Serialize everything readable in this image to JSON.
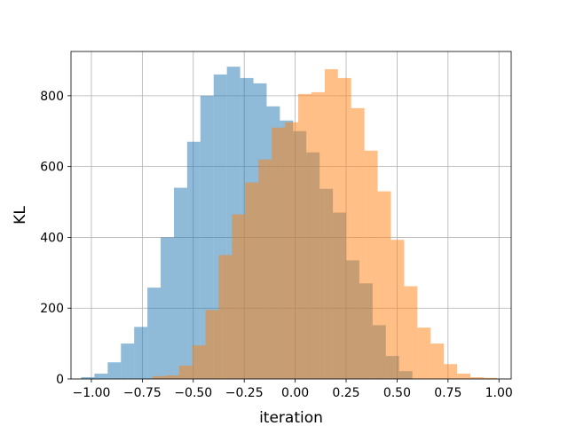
{
  "chart_data": {
    "type": "histogram",
    "xlabel": "iteration",
    "ylabel": "KL",
    "xlim": [
      -1.1,
      1.06
    ],
    "ylim": [
      0,
      925
    ],
    "grid": true,
    "xticks": [
      -1.0,
      -0.75,
      -0.5,
      -0.25,
      0.0,
      0.25,
      0.5,
      0.75,
      1.0
    ],
    "xtick_labels": [
      "−1.00",
      "−0.75",
      "−0.50",
      "−0.25",
      "0.00",
      "0.25",
      "0.50",
      "0.75",
      "1.00"
    ],
    "yticks": [
      0,
      200,
      400,
      600,
      800
    ],
    "ytick_labels": [
      "0",
      "200",
      "400",
      "600",
      "800"
    ],
    "series": [
      {
        "color": "#1f77b4",
        "opacity": 0.5,
        "bins": [
          [
            -1.05,
            -0.985,
            5
          ],
          [
            -0.985,
            -0.92,
            15
          ],
          [
            -0.92,
            -0.855,
            47
          ],
          [
            -0.855,
            -0.79,
            100
          ],
          [
            -0.79,
            -0.725,
            147
          ],
          [
            -0.725,
            -0.66,
            258
          ],
          [
            -0.66,
            -0.595,
            400
          ],
          [
            -0.595,
            -0.53,
            540
          ],
          [
            -0.53,
            -0.465,
            670
          ],
          [
            -0.465,
            -0.4,
            800
          ],
          [
            -0.4,
            -0.335,
            860
          ],
          [
            -0.335,
            -0.27,
            882
          ],
          [
            -0.27,
            -0.205,
            850
          ],
          [
            -0.205,
            -0.14,
            835
          ],
          [
            -0.14,
            -0.075,
            770
          ],
          [
            -0.075,
            -0.01,
            730
          ],
          [
            -0.01,
            0.055,
            700
          ],
          [
            0.055,
            0.12,
            640
          ],
          [
            0.12,
            0.185,
            537
          ],
          [
            0.185,
            0.25,
            470
          ],
          [
            0.25,
            0.315,
            335
          ],
          [
            0.315,
            0.38,
            270
          ],
          [
            0.38,
            0.445,
            152
          ],
          [
            0.445,
            0.51,
            65
          ],
          [
            0.51,
            0.575,
            22
          ]
        ]
      },
      {
        "color": "#ff7f0e",
        "opacity": 0.5,
        "bins": [
          [
            -0.7,
            -0.635,
            8
          ],
          [
            -0.635,
            -0.57,
            10
          ],
          [
            -0.57,
            -0.505,
            38
          ],
          [
            -0.505,
            -0.44,
            95
          ],
          [
            -0.44,
            -0.375,
            195
          ],
          [
            -0.375,
            -0.31,
            350
          ],
          [
            -0.31,
            -0.245,
            465
          ],
          [
            -0.245,
            -0.18,
            555
          ],
          [
            -0.18,
            -0.115,
            620
          ],
          [
            -0.115,
            -0.05,
            710
          ],
          [
            -0.05,
            0.015,
            725
          ],
          [
            0.015,
            0.08,
            805
          ],
          [
            0.08,
            0.145,
            810
          ],
          [
            0.145,
            0.21,
            875
          ],
          [
            0.21,
            0.275,
            850
          ],
          [
            0.275,
            0.34,
            765
          ],
          [
            0.34,
            0.405,
            645
          ],
          [
            0.405,
            0.47,
            530
          ],
          [
            0.47,
            0.535,
            393
          ],
          [
            0.535,
            0.6,
            262
          ],
          [
            0.6,
            0.665,
            145
          ],
          [
            0.665,
            0.73,
            100
          ],
          [
            0.73,
            0.795,
            42
          ],
          [
            0.795,
            0.86,
            15
          ],
          [
            0.86,
            0.925,
            5
          ],
          [
            0.925,
            0.99,
            3
          ]
        ]
      }
    ]
  }
}
